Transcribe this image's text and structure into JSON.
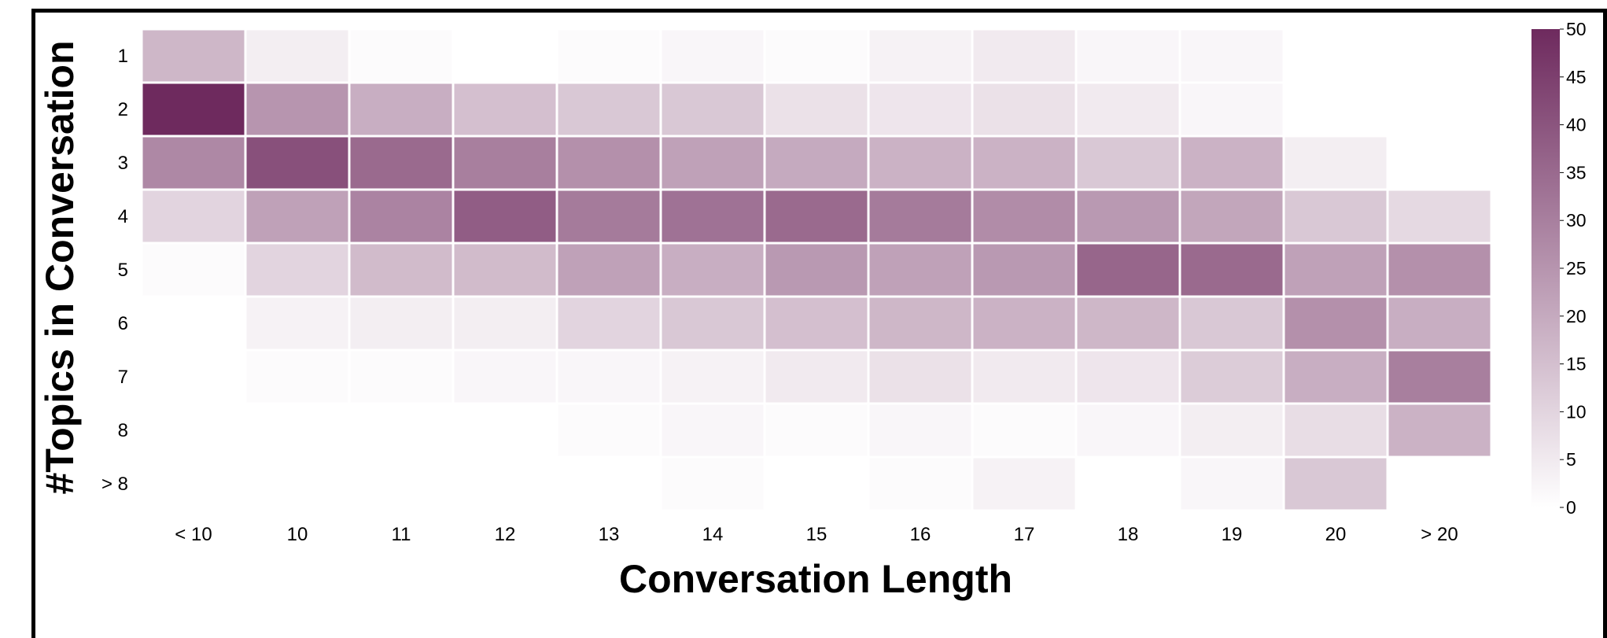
{
  "chart_data": {
    "type": "heatmap",
    "xlabel": "Conversation Length",
    "ylabel": "#Topics in Conversation",
    "x_categories": [
      "< 10",
      "10",
      "11",
      "12",
      "13",
      "14",
      "15",
      "16",
      "17",
      "18",
      "19",
      "20",
      "> 20"
    ],
    "y_categories": [
      "1",
      "2",
      "3",
      "4",
      "5",
      "6",
      "7",
      "8",
      "> 8"
    ],
    "values": [
      [
        17,
        4,
        1,
        null,
        1,
        2,
        1,
        3,
        5,
        2,
        2,
        null,
        null
      ],
      [
        50,
        25,
        19,
        15,
        13,
        13,
        7,
        6,
        7,
        5,
        2,
        null,
        null
      ],
      [
        28,
        41,
        35,
        30,
        26,
        22,
        20,
        18,
        18,
        13,
        18,
        4,
        null
      ],
      [
        10,
        22,
        29,
        38,
        31,
        33,
        35,
        31,
        27,
        24,
        21,
        13,
        9
      ],
      [
        1,
        10,
        16,
        16,
        22,
        19,
        24,
        22,
        24,
        36,
        35,
        22,
        26
      ],
      [
        null,
        3,
        4,
        4,
        10,
        13,
        15,
        17,
        18,
        17,
        13,
        26,
        19
      ],
      [
        null,
        1,
        1,
        2,
        2,
        3,
        5,
        7,
        5,
        6,
        12,
        19,
        30
      ],
      [
        null,
        null,
        null,
        null,
        1,
        2,
        1,
        2,
        1,
        2,
        4,
        8,
        18
      ],
      [
        null,
        null,
        null,
        null,
        null,
        1,
        null,
        1,
        3,
        null,
        2,
        13,
        null
      ]
    ],
    "color_min": 0,
    "color_max": 50,
    "colorbar_ticks": [
      0,
      5,
      10,
      15,
      20,
      25,
      30,
      35,
      40,
      45,
      50
    ],
    "color_low": "#ffffff",
    "color_high": "#6e2a5e",
    "grid": false,
    "legend": "colorbar right"
  }
}
